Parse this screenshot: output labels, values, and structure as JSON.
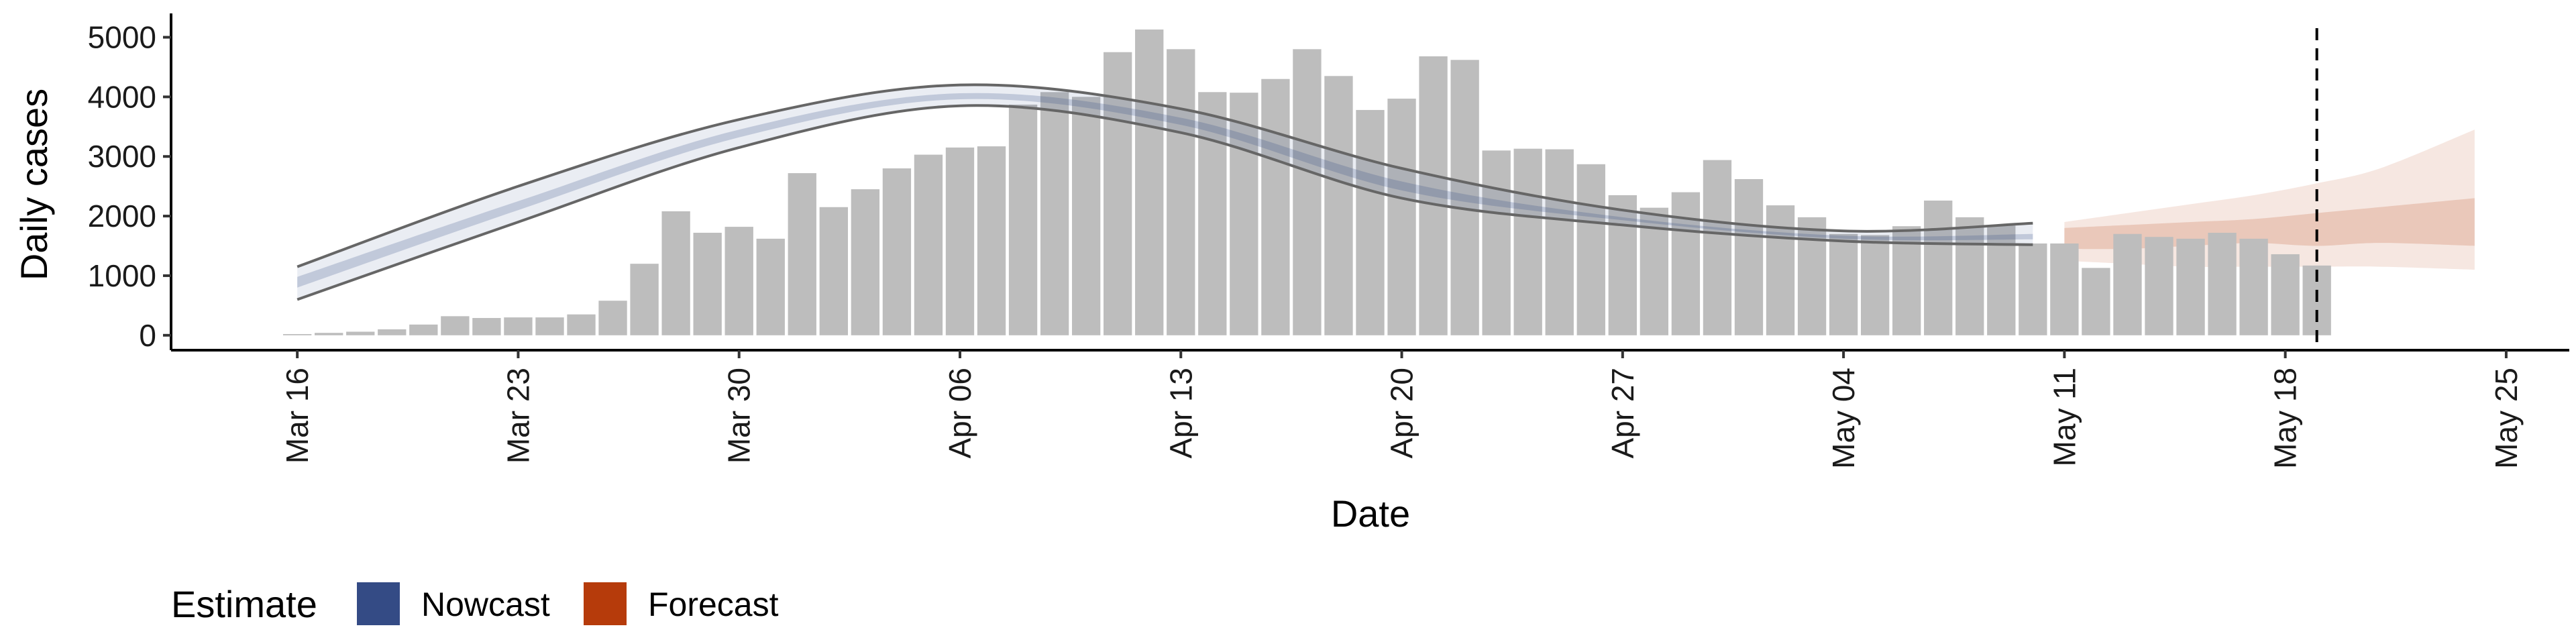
{
  "chart_data": {
    "type": "bar",
    "xlabel": "Date",
    "ylabel": "Daily cases",
    "x_tick_labels": [
      "Mar 16",
      "Mar 23",
      "Mar 30",
      "Apr 06",
      "Apr 13",
      "Apr 20",
      "Apr 27",
      "May 04",
      "May 11",
      "May 18",
      "May 25"
    ],
    "y_ticks": [
      0,
      1000,
      2000,
      3000,
      4000,
      5000
    ],
    "y_tick_labels": [
      "0",
      "1000",
      "2000",
      "3000",
      "4000",
      "5000"
    ],
    "ylim": [
      -250,
      5400
    ],
    "xlim": [
      "2020-03-12",
      "2020-05-27"
    ],
    "grid": false,
    "legend_position": "bottom-left",
    "legend_title": "Estimate",
    "legend_items": [
      {
        "label": "Nowcast",
        "color": "#344b85"
      },
      {
        "label": "Forecast",
        "color": "#b63b0b"
      }
    ],
    "bar_color": "#bdbdbd",
    "bars": {
      "start_date": "2020-03-16",
      "values": [
        20,
        40,
        60,
        100,
        180,
        320,
        290,
        300,
        300,
        350,
        580,
        1200,
        2080,
        1720,
        1820,
        1620,
        2720,
        2150,
        2450,
        2800,
        3030,
        3150,
        3170,
        3870,
        4080,
        4000,
        4750,
        5130,
        4800,
        4080,
        4070,
        4300,
        4800,
        4350,
        3780,
        3970,
        4680,
        4620,
        3100,
        3130,
        3120,
        2870,
        2350,
        2140,
        2400,
        2940,
        2620,
        2180,
        1980,
        1700,
        1680,
        1830,
        2260,
        1980,
        1840,
        1540,
        1540,
        1130,
        1700,
        1650,
        1620,
        1720,
        1620,
        1360,
        1170
      ]
    },
    "nowcast": {
      "start_date": "2020-03-16",
      "end_date": "2020-05-10",
      "upper90": [
        [
          0,
          1150
        ],
        [
          7,
          2500
        ],
        [
          14,
          3620
        ],
        [
          21,
          4200
        ],
        [
          28,
          3800
        ],
        [
          35,
          2800
        ],
        [
          42,
          2100
        ],
        [
          49,
          1750
        ],
        [
          55,
          1880
        ]
      ],
      "lower90": [
        [
          0,
          600
        ],
        [
          7,
          1900
        ],
        [
          14,
          3150
        ],
        [
          21,
          3850
        ],
        [
          28,
          3400
        ],
        [
          35,
          2300
        ],
        [
          42,
          1850
        ],
        [
          49,
          1580
        ],
        [
          55,
          1520
        ]
      ],
      "upper50": [
        [
          0,
          980
        ],
        [
          7,
          2250
        ],
        [
          14,
          3450
        ],
        [
          21,
          4060
        ],
        [
          28,
          3650
        ],
        [
          35,
          2580
        ],
        [
          42,
          1980
        ],
        [
          49,
          1670
        ],
        [
          55,
          1700
        ]
      ],
      "lower50": [
        [
          0,
          800
        ],
        [
          7,
          2100
        ],
        [
          14,
          3320
        ],
        [
          21,
          3960
        ],
        [
          28,
          3530
        ],
        [
          35,
          2430
        ],
        [
          42,
          1930
        ],
        [
          49,
          1620
        ],
        [
          55,
          1610
        ]
      ],
      "fill_color": "#344b85",
      "line_color": "#666666"
    },
    "forecast": {
      "start_date": "2020-05-11",
      "end_date": "2020-05-24",
      "upper90": [
        [
          0,
          1900
        ],
        [
          2,
          2050
        ],
        [
          4,
          2200
        ],
        [
          6,
          2350
        ],
        [
          8,
          2550
        ],
        [
          10,
          2800
        ],
        [
          13,
          3450
        ]
      ],
      "lower90": [
        [
          0,
          1250
        ],
        [
          2,
          1200
        ],
        [
          4,
          1150
        ],
        [
          6,
          1150
        ],
        [
          8,
          1150
        ],
        [
          10,
          1150
        ],
        [
          13,
          1100
        ]
      ],
      "upper50": [
        [
          0,
          1800
        ],
        [
          2,
          1850
        ],
        [
          4,
          1900
        ],
        [
          6,
          1950
        ],
        [
          8,
          2050
        ],
        [
          10,
          2150
        ],
        [
          13,
          2300
        ]
      ],
      "lower50": [
        [
          0,
          1450
        ],
        [
          2,
          1450
        ],
        [
          4,
          1500
        ],
        [
          6,
          1550
        ],
        [
          8,
          1500
        ],
        [
          10,
          1550
        ],
        [
          13,
          1500
        ]
      ],
      "fill_color": "#b63b0b"
    },
    "vline_date": "2020-05-19"
  }
}
